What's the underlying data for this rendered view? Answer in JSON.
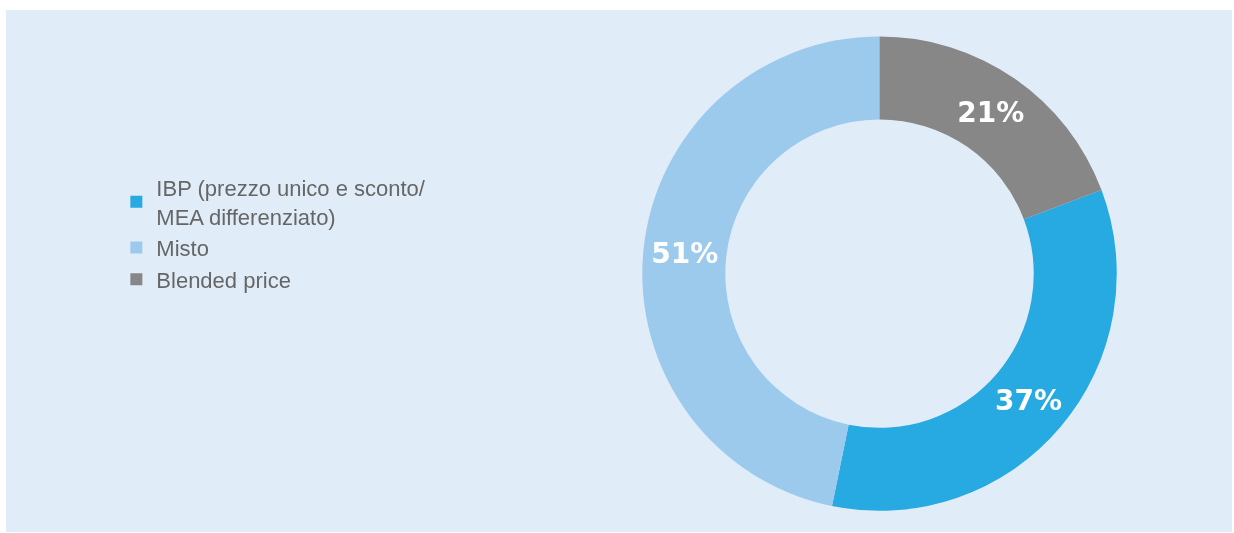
{
  "chart_data": {
    "type": "donut",
    "categories": [
      "IBP (prezzo unico e sconto/\nMEA differenziato)",
      "Misto",
      "Blended price"
    ],
    "values": [
      37,
      51,
      21
    ],
    "colors": [
      "#27a9e1",
      "#9ccaed",
      "#878787"
    ],
    "value_labels": [
      "37%",
      "51%",
      "21%"
    ],
    "legend": "left"
  }
}
